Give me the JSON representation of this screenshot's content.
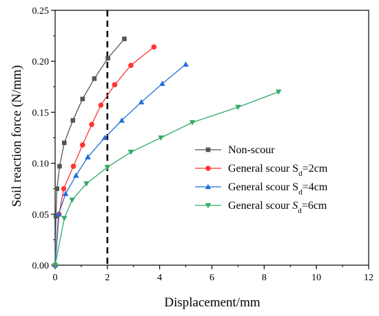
{
  "chart_data": {
    "type": "line",
    "title": "",
    "xlabel": "Displacement/mm",
    "ylabel": "Soil reaction force (N/mm)",
    "xlim": [
      0,
      12
    ],
    "ylim": [
      0,
      0.25
    ],
    "x_ticks": [
      0,
      2,
      4,
      6,
      8,
      10,
      12
    ],
    "x_tick_labels": [
      "0",
      "2",
      "4",
      "6",
      "8",
      "10",
      "12"
    ],
    "y_ticks": [
      0,
      0.05,
      0.1,
      0.15,
      0.2,
      0.25
    ],
    "y_tick_labels": [
      "0.00",
      "0.05",
      "0.10",
      "0.15",
      "0.20",
      "0.25"
    ],
    "grid": false,
    "legend_position": "right",
    "reference_line": {
      "x": 2,
      "style": "dashed",
      "color": "#000000"
    },
    "series": [
      {
        "name": "Non-scour",
        "legend_main": "Non-scour",
        "legend_sub": "",
        "legend_tail": "",
        "color": "#555555",
        "marker": "square",
        "points": [
          [
            0,
            0
          ],
          [
            0.03,
            0.048
          ],
          [
            0.07,
            0.075
          ],
          [
            0.17,
            0.097
          ],
          [
            0.35,
            0.12
          ],
          [
            0.68,
            0.142
          ],
          [
            1.05,
            0.163
          ],
          [
            1.5,
            0.183
          ],
          [
            2.02,
            0.203
          ],
          [
            2.65,
            0.222
          ]
        ]
      },
      {
        "name": "General scour Sd=2cm",
        "legend_main": "General scour S",
        "legend_sub": "d",
        "legend_tail": "=2cm",
        "color": "#ff3333",
        "marker": "circle",
        "points": [
          [
            0,
            0
          ],
          [
            0.15,
            0.05
          ],
          [
            0.33,
            0.075
          ],
          [
            0.7,
            0.097
          ],
          [
            1.05,
            0.118
          ],
          [
            1.4,
            0.138
          ],
          [
            1.75,
            0.157
          ],
          [
            2.28,
            0.177
          ],
          [
            2.9,
            0.196
          ],
          [
            3.78,
            0.214
          ]
        ]
      },
      {
        "name": "General scour Sd=4cm",
        "legend_main": "General scour S",
        "legend_sub": "d",
        "legend_tail": "=4cm",
        "color": "#1f6fd6",
        "marker": "triangle-up",
        "points": [
          [
            0,
            0
          ],
          [
            0.13,
            0.05
          ],
          [
            0.4,
            0.07
          ],
          [
            0.8,
            0.088
          ],
          [
            1.25,
            0.106
          ],
          [
            1.9,
            0.125
          ],
          [
            2.55,
            0.142
          ],
          [
            3.3,
            0.16
          ],
          [
            4.1,
            0.178
          ],
          [
            5.0,
            0.197
          ]
        ]
      },
      {
        "name": "General scour Sd=6cm",
        "legend_main": "General scour ",
        "legend_sub": "d",
        "legend_tail": "=6cm",
        "legend_italic": "S",
        "color": "#33aa66",
        "marker": "triangle-down",
        "points": [
          [
            0,
            0
          ],
          [
            0.35,
            0.046
          ],
          [
            0.65,
            0.064
          ],
          [
            1.2,
            0.08
          ],
          [
            2.0,
            0.096
          ],
          [
            2.9,
            0.111
          ],
          [
            4.05,
            0.125
          ],
          [
            5.25,
            0.14
          ],
          [
            7.0,
            0.155
          ],
          [
            8.55,
            0.17
          ]
        ]
      }
    ]
  }
}
